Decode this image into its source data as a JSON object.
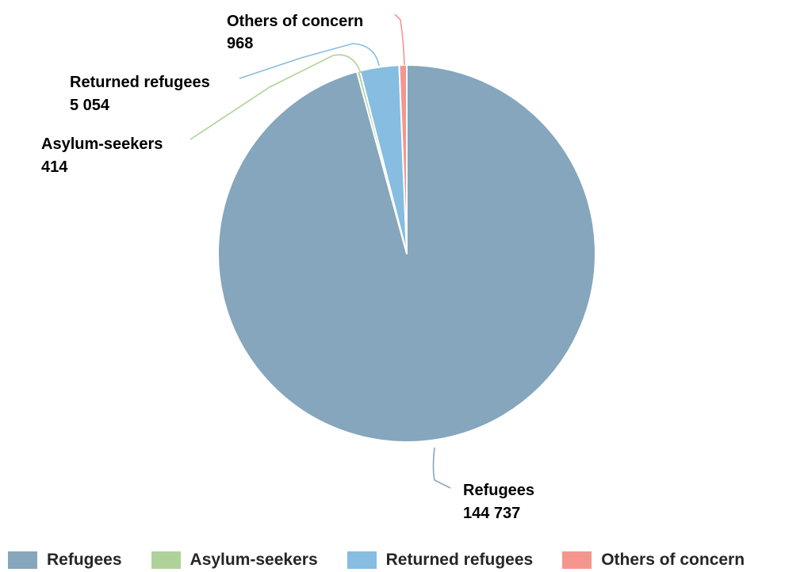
{
  "chart_data": {
    "type": "pie",
    "title": "",
    "start_angle_deg": 0,
    "direction": "clockwise",
    "slices": [
      {
        "name": "Refugees",
        "value": 144737,
        "value_label": "144 737",
        "color": "#85a6bc"
      },
      {
        "name": "Asylum-seekers",
        "value": 414,
        "value_label": "414",
        "color": "#afd29a"
      },
      {
        "name": "Returned refugees",
        "value": 5054,
        "value_label": "5 054",
        "color": "#86bde1"
      },
      {
        "name": "Others of concern",
        "value": 968,
        "value_label": "968",
        "color": "#f5968e"
      }
    ],
    "legend": {
      "position": "bottom",
      "items": [
        "Refugees",
        "Asylum-seekers",
        "Returned refugees",
        "Others of concern"
      ]
    }
  }
}
